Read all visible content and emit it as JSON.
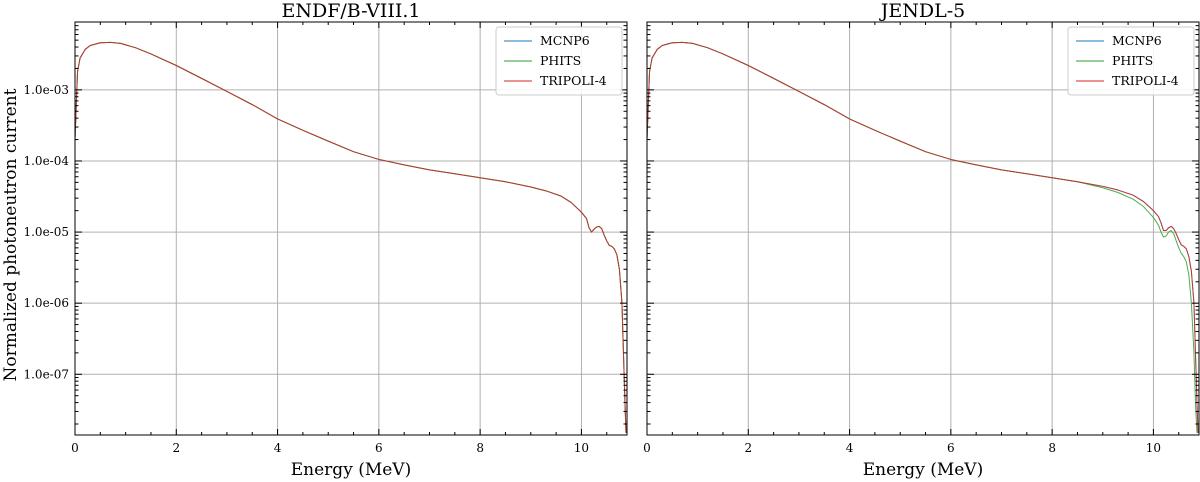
{
  "chart_data": [
    {
      "type": "line",
      "title": "ENDF/B-VIII.1",
      "xlabel": "Energy (MeV)",
      "ylabel": "Normalized photoneutron current",
      "xlim": [
        0,
        10.9
      ],
      "ylim": [
        1.4e-08,
        0.009
      ],
      "yscale": "log",
      "grid": true,
      "legend_position": "top-right",
      "x_ticks": [
        0,
        2,
        4,
        6,
        8,
        10
      ],
      "x_tick_labels": [
        "0",
        "2",
        "4",
        "6",
        "8",
        "10"
      ],
      "y_ticks": [
        0.001,
        0.0001,
        1e-05,
        1e-06,
        1e-07
      ],
      "y_tick_labels": [
        "1.0e-03",
        "1.0e-04",
        "1.0e-05",
        "1.0e-06",
        "1.0e-07"
      ],
      "series": [
        {
          "name": "MCNP6",
          "color": "#1f77b4",
          "x": [
            0.0,
            0.05,
            0.1,
            0.2,
            0.3,
            0.5,
            0.7,
            0.9,
            1.2,
            1.5,
            2.0,
            2.5,
            3.0,
            3.5,
            4.0,
            4.5,
            5.0,
            5.5,
            6.0,
            6.5,
            7.0,
            7.5,
            8.0,
            8.5,
            9.0,
            9.3,
            9.6,
            9.8,
            10.0,
            10.1,
            10.15,
            10.2,
            10.25,
            10.3,
            10.35,
            10.4,
            10.45,
            10.5,
            10.55,
            10.6,
            10.65,
            10.7,
            10.75,
            10.8,
            10.83,
            10.86,
            10.88
          ],
          "values": [
            0.0002,
            0.0018,
            0.0028,
            0.0037,
            0.0042,
            0.0046,
            0.00465,
            0.0045,
            0.0039,
            0.0032,
            0.0022,
            0.00145,
            0.00095,
            0.00062,
            0.00039,
            0.00027,
            0.00019,
            0.000135,
            0.000105,
            8.8e-05,
            7.5e-05,
            6.6e-05,
            5.8e-05,
            5.1e-05,
            4.3e-05,
            3.8e-05,
            3.2e-05,
            2.6e-05,
            1.9e-05,
            1.55e-05,
            1.15e-05,
            1e-05,
            1.1e-05,
            1.18e-05,
            1.2e-05,
            1.12e-05,
            9e-06,
            7.5e-06,
            6.5e-06,
            6.3e-06,
            5.8e-06,
            4.8e-06,
            3e-06,
            1e-06,
            2e-07,
            4e-08,
            1.5e-08
          ]
        },
        {
          "name": "PHITS",
          "color": "#2ca02c",
          "x": [
            0.0,
            0.05,
            0.1,
            0.2,
            0.3,
            0.5,
            0.7,
            0.9,
            1.2,
            1.5,
            2.0,
            2.5,
            3.0,
            3.5,
            4.0,
            4.5,
            5.0,
            5.5,
            6.0,
            6.5,
            7.0,
            7.5,
            8.0,
            8.5,
            9.0,
            9.3,
            9.6,
            9.8,
            10.0,
            10.1,
            10.15,
            10.2,
            10.25,
            10.3,
            10.35,
            10.4,
            10.45,
            10.5,
            10.55,
            10.6,
            10.65,
            10.7,
            10.75,
            10.8,
            10.83,
            10.86,
            10.88
          ],
          "values": [
            0.0002,
            0.0018,
            0.0028,
            0.0037,
            0.0042,
            0.0046,
            0.00465,
            0.0045,
            0.0039,
            0.0032,
            0.0022,
            0.00145,
            0.00095,
            0.00062,
            0.00039,
            0.00027,
            0.00019,
            0.000135,
            0.000105,
            8.8e-05,
            7.5e-05,
            6.6e-05,
            5.8e-05,
            5.1e-05,
            4.3e-05,
            3.8e-05,
            3.2e-05,
            2.6e-05,
            1.9e-05,
            1.55e-05,
            1.15e-05,
            1e-05,
            1.1e-05,
            1.18e-05,
            1.2e-05,
            1.12e-05,
            9e-06,
            7.5e-06,
            6.5e-06,
            6.3e-06,
            5.8e-06,
            4.8e-06,
            3e-06,
            1e-06,
            2e-07,
            4e-08,
            1.5e-08
          ]
        },
        {
          "name": "TRIPOLI-4",
          "color": "#d62728",
          "x": [
            0.0,
            0.05,
            0.1,
            0.2,
            0.3,
            0.5,
            0.7,
            0.9,
            1.2,
            1.5,
            2.0,
            2.5,
            3.0,
            3.5,
            4.0,
            4.5,
            5.0,
            5.5,
            6.0,
            6.5,
            7.0,
            7.5,
            8.0,
            8.5,
            9.0,
            9.3,
            9.6,
            9.8,
            10.0,
            10.1,
            10.15,
            10.2,
            10.25,
            10.3,
            10.35,
            10.4,
            10.45,
            10.5,
            10.55,
            10.6,
            10.65,
            10.7,
            10.75,
            10.8,
            10.83,
            10.86,
            10.88
          ],
          "values": [
            0.0002,
            0.0018,
            0.0028,
            0.0037,
            0.0042,
            0.0046,
            0.00465,
            0.0045,
            0.0039,
            0.0032,
            0.0022,
            0.00145,
            0.00095,
            0.00062,
            0.00039,
            0.00027,
            0.00019,
            0.000135,
            0.000105,
            8.8e-05,
            7.5e-05,
            6.6e-05,
            5.8e-05,
            5.1e-05,
            4.3e-05,
            3.8e-05,
            3.2e-05,
            2.6e-05,
            1.9e-05,
            1.55e-05,
            1.15e-05,
            1e-05,
            1.1e-05,
            1.18e-05,
            1.2e-05,
            1.12e-05,
            9e-06,
            7.5e-06,
            6.5e-06,
            6.3e-06,
            5.8e-06,
            4.8e-06,
            3e-06,
            1e-06,
            2e-07,
            4e-08,
            1.5e-08
          ]
        }
      ]
    },
    {
      "type": "line",
      "title": "JENDL-5",
      "xlabel": "Energy (MeV)",
      "ylabel": "",
      "xlim": [
        0,
        10.9
      ],
      "ylim": [
        1.4e-08,
        0.009
      ],
      "yscale": "log",
      "grid": true,
      "legend_position": "top-right",
      "x_ticks": [
        0,
        2,
        4,
        6,
        8,
        10
      ],
      "x_tick_labels": [
        "0",
        "2",
        "4",
        "6",
        "8",
        "10"
      ],
      "y_ticks": [
        0.001,
        0.0001,
        1e-05,
        1e-06,
        1e-07
      ],
      "y_tick_labels": [],
      "series": [
        {
          "name": "MCNP6",
          "color": "#1f77b4",
          "x": [
            0.0,
            0.05,
            0.1,
            0.2,
            0.3,
            0.5,
            0.7,
            0.9,
            1.2,
            1.5,
            2.0,
            2.5,
            3.0,
            3.5,
            4.0,
            4.5,
            5.0,
            5.5,
            6.0,
            6.5,
            7.0,
            7.5,
            8.0,
            8.5,
            9.0,
            9.3,
            9.6,
            9.8,
            10.0,
            10.1,
            10.15,
            10.2,
            10.25,
            10.3,
            10.35,
            10.4,
            10.45,
            10.5,
            10.55,
            10.6,
            10.65,
            10.7,
            10.75,
            10.8,
            10.83,
            10.86,
            10.88
          ],
          "values": [
            0.0002,
            0.0018,
            0.0028,
            0.0037,
            0.0042,
            0.0046,
            0.00465,
            0.0045,
            0.0039,
            0.0032,
            0.0022,
            0.00145,
            0.00095,
            0.00062,
            0.00039,
            0.00027,
            0.00019,
            0.000135,
            0.000105,
            8.8e-05,
            7.5e-05,
            6.6e-05,
            5.8e-05,
            5.1e-05,
            4.4e-05,
            3.9e-05,
            3.3e-05,
            2.7e-05,
            2e-05,
            1.65e-05,
            1.35e-05,
            1.05e-05,
            1.05e-05,
            1.15e-05,
            1.2e-05,
            1.12e-05,
            9.5e-06,
            7.8e-06,
            6.6e-06,
            6.3e-06,
            5.8e-06,
            4.5e-06,
            2.8e-06,
            1e-06,
            2e-07,
            4e-08,
            1.5e-08
          ]
        },
        {
          "name": "PHITS",
          "color": "#2ca02c",
          "x": [
            0.0,
            0.05,
            0.1,
            0.2,
            0.3,
            0.5,
            0.7,
            0.9,
            1.2,
            1.5,
            2.0,
            2.5,
            3.0,
            3.5,
            4.0,
            4.5,
            5.0,
            5.5,
            6.0,
            6.5,
            7.0,
            7.5,
            8.0,
            8.5,
            9.0,
            9.3,
            9.6,
            9.8,
            10.0,
            10.1,
            10.15,
            10.2,
            10.25,
            10.3,
            10.35,
            10.4,
            10.45,
            10.5,
            10.55,
            10.6,
            10.65,
            10.7,
            10.75,
            10.8,
            10.83,
            10.86
          ],
          "values": [
            0.0002,
            0.0018,
            0.0028,
            0.0037,
            0.0042,
            0.0046,
            0.00465,
            0.0045,
            0.0039,
            0.0032,
            0.0022,
            0.00145,
            0.00095,
            0.00062,
            0.00039,
            0.00027,
            0.00019,
            0.000135,
            0.000105,
            8.8e-05,
            7.5e-05,
            6.6e-05,
            5.8e-05,
            5.1e-05,
            4.2e-05,
            3.6e-05,
            2.9e-05,
            2.3e-05,
            1.6e-05,
            1.25e-05,
            1e-05,
            8.5e-06,
            8.8e-06,
            1e-05,
            1.05e-05,
            9.5e-06,
            7.5e-06,
            6e-06,
            5e-06,
            4.5e-06,
            3.8e-06,
            2.5e-06,
            1e-06,
            2e-07,
            4e-08,
            1.5e-08
          ]
        },
        {
          "name": "TRIPOLI-4",
          "color": "#d62728",
          "x": [
            0.0,
            0.05,
            0.1,
            0.2,
            0.3,
            0.5,
            0.7,
            0.9,
            1.2,
            1.5,
            2.0,
            2.5,
            3.0,
            3.5,
            4.0,
            4.5,
            5.0,
            5.5,
            6.0,
            6.5,
            7.0,
            7.5,
            8.0,
            8.5,
            9.0,
            9.3,
            9.6,
            9.8,
            10.0,
            10.1,
            10.15,
            10.2,
            10.25,
            10.3,
            10.35,
            10.4,
            10.45,
            10.5,
            10.55,
            10.6,
            10.65,
            10.7,
            10.75,
            10.8,
            10.83,
            10.86,
            10.88
          ],
          "values": [
            0.0002,
            0.0018,
            0.0028,
            0.0037,
            0.0042,
            0.0046,
            0.00465,
            0.0045,
            0.0039,
            0.0032,
            0.0022,
            0.00145,
            0.00095,
            0.00062,
            0.00039,
            0.00027,
            0.00019,
            0.000135,
            0.000105,
            8.8e-05,
            7.5e-05,
            6.6e-05,
            5.8e-05,
            5.1e-05,
            4.4e-05,
            3.9e-05,
            3.3e-05,
            2.7e-05,
            2e-05,
            1.65e-05,
            1.35e-05,
            1.05e-05,
            1.05e-05,
            1.15e-05,
            1.2e-05,
            1.12e-05,
            9.5e-06,
            7.8e-06,
            6.6e-06,
            6.3e-06,
            5.8e-06,
            4.5e-06,
            2.8e-06,
            1e-06,
            2e-07,
            4e-08,
            1.5e-08
          ]
        }
      ]
    }
  ]
}
